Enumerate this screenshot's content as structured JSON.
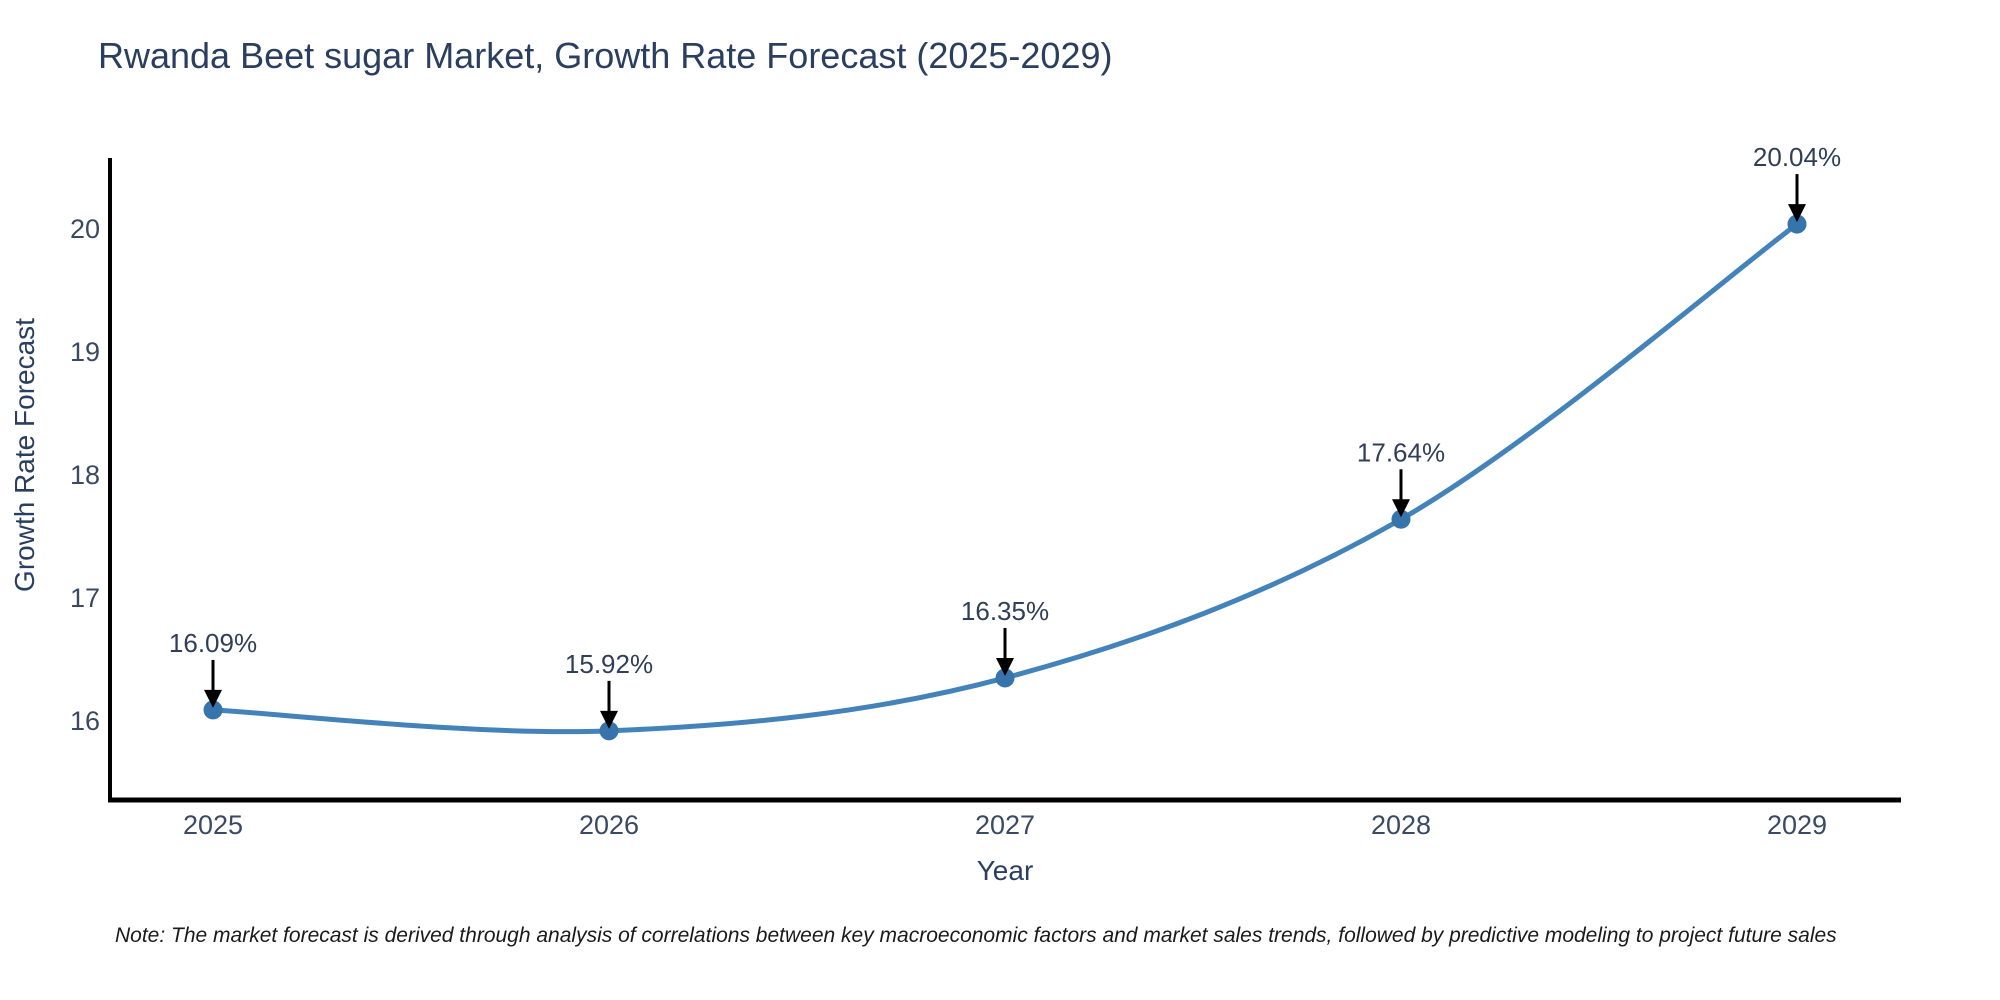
{
  "title": "Rwanda Beet sugar Market, Growth Rate Forecast (2025-2029)",
  "note": "Note: The market forecast is derived through analysis of correlations between key macroeconomic factors and market sales trends, followed by predictive modeling to project future sales",
  "chart_data": {
    "type": "line",
    "title": "Rwanda Beet sugar Market, Growth Rate Forecast (2025-2029)",
    "xlabel": "Year",
    "ylabel": "Growth Rate Forecast",
    "categories": [
      "2025",
      "2026",
      "2027",
      "2028",
      "2029"
    ],
    "x": [
      2025,
      2026,
      2027,
      2028,
      2029
    ],
    "series": [
      {
        "name": "Growth Rate Forecast",
        "values": [
          16.09,
          15.92,
          16.35,
          17.64,
          20.04
        ]
      }
    ],
    "point_labels": [
      "16.09%",
      "15.92%",
      "16.35%",
      "17.64%",
      "20.04%"
    ],
    "y_ticks": [
      16,
      17,
      18,
      19,
      20
    ],
    "ylim": [
      15.36,
      20.58
    ],
    "xlim": [
      2024.74,
      2029.26
    ],
    "grid": false,
    "legend_position": "none",
    "line_shape": "spline",
    "annotation_style": "value label with downward black arrow to each point",
    "colors": {
      "line": "#4383ba",
      "marker": "#3674ab",
      "axis_line": "#000000",
      "title_text": "#2a3f5f",
      "tick_text": "#3a4a63",
      "annotation_text": "#2f3f57",
      "arrow": "#000000",
      "background": "#ffffff"
    }
  }
}
